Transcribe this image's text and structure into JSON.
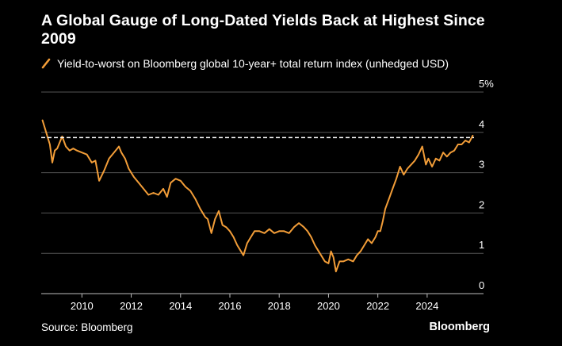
{
  "title": "A Global Gauge of Long-Dated Yields Back at Highest Since 2009",
  "source": "Source: Bloomberg",
  "brand": "Bloomberg",
  "colors": {
    "background": "#000000",
    "series": "#f29d38",
    "grid": "#555555",
    "reference_line": "#ffffff",
    "text": "#ffffff"
  },
  "chart_data": {
    "type": "line",
    "title": "A Global Gauge of Long-Dated Yields Back at Highest Since 2009",
    "xlabel": "",
    "ylabel": "",
    "y_unit": "%",
    "ylim": [
      0,
      5
    ],
    "xlim": [
      2008.35,
      2025.9
    ],
    "yticks": [
      {
        "value": 0,
        "label": "0"
      },
      {
        "value": 1,
        "label": "1"
      },
      {
        "value": 2,
        "label": "2"
      },
      {
        "value": 3,
        "label": "3"
      },
      {
        "value": 4,
        "label": "4"
      },
      {
        "value": 5,
        "label": "5%"
      }
    ],
    "xticks": [
      {
        "value": 2010,
        "label": "2010"
      },
      {
        "value": 2012,
        "label": "2012"
      },
      {
        "value": 2014,
        "label": "2014"
      },
      {
        "value": 2016,
        "label": "2016"
      },
      {
        "value": 2018,
        "label": "2018"
      },
      {
        "value": 2020,
        "label": "2020"
      },
      {
        "value": 2022,
        "label": "2022"
      },
      {
        "value": 2024,
        "label": "2024"
      }
    ],
    "grid": true,
    "legend_position": "top-left",
    "reference_lines": [
      {
        "y": 3.87,
        "style": "dashed"
      }
    ],
    "series": [
      {
        "name": "Yield-to-worst on Bloomberg global 10-year+ total return index (unhedged USD)",
        "x": [
          2008.4,
          2008.5,
          2008.6,
          2008.7,
          2008.8,
          2008.9,
          2009.0,
          2009.1,
          2009.2,
          2009.35,
          2009.5,
          2009.65,
          2009.8,
          2010.0,
          2010.2,
          2010.4,
          2010.55,
          2010.7,
          2010.9,
          2011.1,
          2011.3,
          2011.5,
          2011.6,
          2011.75,
          2011.9,
          2012.1,
          2012.3,
          2012.5,
          2012.7,
          2012.9,
          2013.1,
          2013.3,
          2013.45,
          2013.6,
          2013.8,
          2014.0,
          2014.2,
          2014.4,
          2014.6,
          2014.8,
          2015.0,
          2015.1,
          2015.25,
          2015.4,
          2015.55,
          2015.7,
          2015.85,
          2016.0,
          2016.15,
          2016.3,
          2016.45,
          2016.55,
          2016.7,
          2016.85,
          2017.0,
          2017.2,
          2017.4,
          2017.6,
          2017.8,
          2018.0,
          2018.2,
          2018.4,
          2018.6,
          2018.8,
          2019.0,
          2019.15,
          2019.3,
          2019.45,
          2019.6,
          2019.75,
          2019.85,
          2020.0,
          2020.1,
          2020.2,
          2020.3,
          2020.45,
          2020.6,
          2020.8,
          2021.0,
          2021.15,
          2021.3,
          2021.45,
          2021.6,
          2021.75,
          2021.9,
          2022.0,
          2022.1,
          2022.2,
          2022.3,
          2022.45,
          2022.6,
          2022.75,
          2022.9,
          2023.05,
          2023.2,
          2023.35,
          2023.5,
          2023.65,
          2023.8,
          2023.95,
          2024.05,
          2024.2,
          2024.35,
          2024.5,
          2024.65,
          2024.8,
          2024.95,
          2025.1,
          2025.25,
          2025.4,
          2025.55,
          2025.7,
          2025.85
        ],
        "y": [
          4.3,
          4.1,
          3.9,
          3.7,
          3.25,
          3.55,
          3.6,
          3.75,
          3.9,
          3.65,
          3.55,
          3.6,
          3.55,
          3.5,
          3.45,
          3.25,
          3.3,
          2.8,
          3.05,
          3.35,
          3.5,
          3.65,
          3.5,
          3.35,
          3.1,
          2.9,
          2.75,
          2.6,
          2.45,
          2.5,
          2.45,
          2.6,
          2.4,
          2.75,
          2.85,
          2.8,
          2.65,
          2.55,
          2.35,
          2.1,
          1.9,
          1.85,
          1.5,
          1.85,
          2.05,
          1.7,
          1.65,
          1.55,
          1.4,
          1.2,
          1.05,
          0.95,
          1.25,
          1.4,
          1.55,
          1.55,
          1.5,
          1.6,
          1.5,
          1.55,
          1.55,
          1.5,
          1.65,
          1.75,
          1.65,
          1.55,
          1.4,
          1.2,
          1.05,
          0.9,
          0.8,
          0.75,
          1.05,
          0.9,
          0.55,
          0.8,
          0.8,
          0.85,
          0.8,
          0.95,
          1.05,
          1.2,
          1.35,
          1.25,
          1.4,
          1.55,
          1.55,
          1.8,
          2.1,
          2.35,
          2.6,
          2.85,
          3.15,
          2.95,
          3.1,
          3.2,
          3.3,
          3.45,
          3.65,
          3.2,
          3.35,
          3.15,
          3.35,
          3.3,
          3.5,
          3.4,
          3.5,
          3.55,
          3.7,
          3.7,
          3.8,
          3.75,
          3.92
        ]
      }
    ]
  }
}
